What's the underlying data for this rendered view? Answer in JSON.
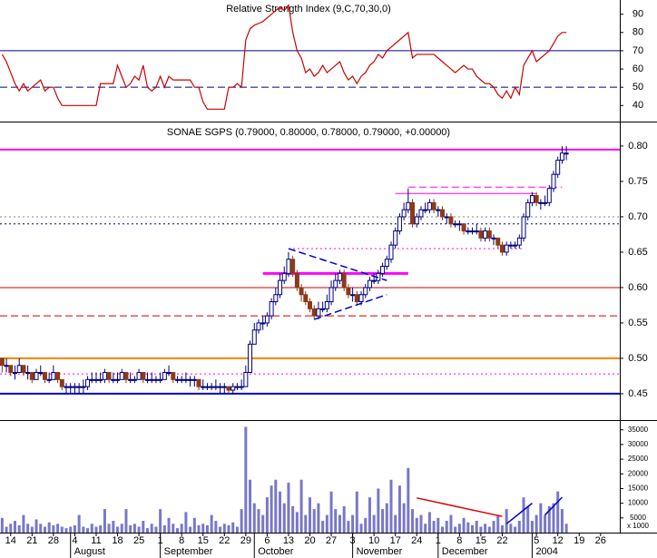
{
  "chart_data": [
    {
      "type": "line",
      "title": "Relative Strength Index (9,C,70,30,0)",
      "color": "#cc0000",
      "xlim": [
        -0.5,
        144.5
      ],
      "ylim": [
        31.7,
        97.8
      ],
      "yticks": [
        40,
        50,
        60,
        70,
        80,
        90
      ],
      "hlines": [
        {
          "value": 70,
          "color": "#000080",
          "style": "solid",
          "width": 1
        },
        {
          "value": 50,
          "color": "#000080",
          "style": "dashed",
          "width": 1
        }
      ],
      "values": [
        68,
        64,
        58,
        52,
        48,
        52,
        48,
        50,
        52,
        54,
        48,
        50,
        50,
        44,
        40,
        40,
        40,
        40,
        40,
        40,
        40,
        40,
        40,
        52,
        52,
        52,
        52,
        62,
        56,
        50,
        52,
        56,
        54,
        62,
        50,
        48,
        50,
        56,
        50,
        56,
        54,
        54,
        54,
        54,
        54,
        50,
        50,
        42,
        38,
        38,
        38,
        38,
        38,
        50,
        50,
        52,
        50,
        76,
        82,
        84,
        85,
        86,
        88,
        90,
        92,
        94,
        92,
        95,
        80,
        70,
        66,
        58,
        60,
        56,
        58,
        62,
        58,
        60,
        62,
        64,
        58,
        54,
        56,
        52,
        56,
        58,
        62,
        64,
        68,
        66,
        70,
        72,
        74,
        76,
        78,
        80,
        66,
        68,
        68,
        68,
        68,
        68,
        66,
        64,
        62,
        60,
        58,
        60,
        62,
        60,
        60,
        56,
        54,
        52,
        52,
        50,
        46,
        44,
        48,
        44,
        50,
        46,
        62,
        66,
        70,
        64,
        66,
        68,
        70,
        74,
        78,
        80,
        80
      ]
    },
    {
      "type": "candlestick",
      "title": "SONAE SGPS (0.79000, 0.80000, 0.78000, 0.79000, +0.00000)",
      "up_color": "#000080",
      "down_color": "#8b3a1a",
      "xlim": [
        -0.5,
        144.5
      ],
      "ylim": [
        0.414,
        0.832
      ],
      "yticks": [
        0.45,
        {
          "value": 0.5,
          "label": "0.50"
        },
        0.55,
        {
          "value": 0.6,
          "label": "0.60"
        },
        0.65,
        {
          "value": 0.7,
          "label": "0.70"
        },
        0.75,
        {
          "value": 0.8,
          "label": "0.80"
        }
      ],
      "hlines": [
        {
          "value": 0.795,
          "color": "#ff00ff",
          "style": "solid",
          "width": 2
        },
        {
          "value": 0.7,
          "color": "#808080",
          "style": "dotted",
          "width": 1
        },
        {
          "value": 0.69,
          "color": "#000080",
          "style": "dotted",
          "width": 1
        },
        {
          "value": 0.6,
          "color": "#cc0000",
          "style": "solid",
          "width": 1
        },
        {
          "value": 0.56,
          "color": "#cc0000",
          "style": "dashed",
          "width": 1
        },
        {
          "value": 0.5,
          "color": "#ff8000",
          "style": "solid",
          "width": 2
        },
        {
          "value": 0.478,
          "color": "#ff00ff",
          "style": "dotted",
          "width": 1
        },
        {
          "value": 0.45,
          "color": "#0000cc",
          "style": "solid",
          "width": 2
        }
      ],
      "segments": [
        {
          "from": 61,
          "to": 95,
          "value": 0.62,
          "color": "#ff00ff",
          "style": "solid",
          "width": 3
        },
        {
          "from": 67,
          "to": 122,
          "value": 0.655,
          "color": "#ff00ff",
          "style": "dotted",
          "width": 1
        },
        {
          "from": 92,
          "to": 125,
          "value": 0.733,
          "color": "#ff00ff",
          "style": "solid",
          "width": 1
        },
        {
          "from": 95,
          "to": 131,
          "value": 0.742,
          "color": "#ff00ff",
          "style": "dashed",
          "width": 1
        }
      ],
      "trendlines": [
        {
          "x": [
            67,
            90
          ],
          "y": [
            0.655,
            0.61
          ],
          "color": "#0000cc",
          "style": "dashed"
        },
        {
          "x": [
            73,
            90
          ],
          "y": [
            0.555,
            0.59
          ],
          "color": "#0000cc",
          "style": "dashed"
        }
      ],
      "open": [
        0.5,
        0.49,
        0.49,
        0.48,
        0.48,
        0.49,
        0.48,
        0.48,
        0.47,
        0.48,
        0.48,
        0.47,
        0.47,
        0.48,
        0.47,
        0.46,
        0.46,
        0.46,
        0.46,
        0.46,
        0.46,
        0.47,
        0.47,
        0.47,
        0.47,
        0.48,
        0.47,
        0.47,
        0.47,
        0.48,
        0.47,
        0.47,
        0.47,
        0.48,
        0.47,
        0.47,
        0.47,
        0.47,
        0.47,
        0.48,
        0.48,
        0.47,
        0.47,
        0.47,
        0.47,
        0.47,
        0.47,
        0.46,
        0.46,
        0.46,
        0.46,
        0.46,
        0.46,
        0.46,
        0.455,
        0.46,
        0.46,
        0.46,
        0.48,
        0.52,
        0.54,
        0.55,
        0.55,
        0.56,
        0.58,
        0.59,
        0.61,
        0.62,
        0.64,
        0.62,
        0.6,
        0.59,
        0.58,
        0.57,
        0.56,
        0.57,
        0.57,
        0.58,
        0.6,
        0.61,
        0.62,
        0.6,
        0.59,
        0.59,
        0.58,
        0.59,
        0.6,
        0.61,
        0.61,
        0.62,
        0.63,
        0.64,
        0.66,
        0.68,
        0.7,
        0.71,
        0.72,
        0.69,
        0.7,
        0.71,
        0.71,
        0.72,
        0.71,
        0.71,
        0.7,
        0.7,
        0.69,
        0.69,
        0.69,
        0.68,
        0.68,
        0.68,
        0.68,
        0.67,
        0.68,
        0.67,
        0.67,
        0.66,
        0.65,
        0.66,
        0.66,
        0.66,
        0.67,
        0.7,
        0.72,
        0.73,
        0.72,
        0.72,
        0.72,
        0.74,
        0.76,
        0.78,
        0.79
      ],
      "high": [
        0.5,
        0.5,
        0.49,
        0.49,
        0.5,
        0.49,
        0.49,
        0.48,
        0.485,
        0.49,
        0.48,
        0.48,
        0.49,
        0.48,
        0.47,
        0.465,
        0.465,
        0.465,
        0.465,
        0.47,
        0.475,
        0.48,
        0.48,
        0.48,
        0.485,
        0.48,
        0.48,
        0.48,
        0.485,
        0.48,
        0.48,
        0.475,
        0.485,
        0.48,
        0.48,
        0.48,
        0.475,
        0.48,
        0.485,
        0.49,
        0.48,
        0.475,
        0.475,
        0.48,
        0.475,
        0.475,
        0.47,
        0.47,
        0.465,
        0.465,
        0.47,
        0.465,
        0.465,
        0.46,
        0.465,
        0.465,
        0.47,
        0.49,
        0.525,
        0.55,
        0.555,
        0.56,
        0.565,
        0.585,
        0.6,
        0.62,
        0.63,
        0.65,
        0.645,
        0.625,
        0.605,
        0.595,
        0.585,
        0.575,
        0.58,
        0.58,
        0.59,
        0.61,
        0.62,
        0.625,
        0.625,
        0.605,
        0.6,
        0.595,
        0.595,
        0.605,
        0.615,
        0.62,
        0.625,
        0.635,
        0.645,
        0.665,
        0.685,
        0.705,
        0.72,
        0.74,
        0.725,
        0.705,
        0.715,
        0.72,
        0.725,
        0.725,
        0.715,
        0.715,
        0.705,
        0.705,
        0.695,
        0.695,
        0.69,
        0.685,
        0.685,
        0.69,
        0.685,
        0.685,
        0.685,
        0.675,
        0.67,
        0.665,
        0.665,
        0.665,
        0.665,
        0.675,
        0.705,
        0.725,
        0.735,
        0.735,
        0.725,
        0.73,
        0.745,
        0.765,
        0.785,
        0.8,
        0.8
      ],
      "low": [
        0.48,
        0.48,
        0.475,
        0.47,
        0.48,
        0.475,
        0.47,
        0.465,
        0.47,
        0.475,
        0.465,
        0.465,
        0.47,
        0.465,
        0.455,
        0.45,
        0.45,
        0.45,
        0.45,
        0.45,
        0.455,
        0.465,
        0.465,
        0.465,
        0.465,
        0.465,
        0.465,
        0.465,
        0.47,
        0.465,
        0.465,
        0.465,
        0.47,
        0.465,
        0.465,
        0.465,
        0.465,
        0.465,
        0.47,
        0.475,
        0.465,
        0.465,
        0.465,
        0.465,
        0.46,
        0.46,
        0.455,
        0.455,
        0.455,
        0.455,
        0.455,
        0.45,
        0.45,
        0.45,
        0.45,
        0.455,
        0.455,
        0.46,
        0.48,
        0.52,
        0.535,
        0.54,
        0.545,
        0.555,
        0.575,
        0.585,
        0.605,
        0.615,
        0.615,
        0.595,
        0.58,
        0.575,
        0.565,
        0.555,
        0.555,
        0.565,
        0.565,
        0.575,
        0.595,
        0.605,
        0.595,
        0.585,
        0.58,
        0.575,
        0.575,
        0.585,
        0.595,
        0.605,
        0.605,
        0.615,
        0.625,
        0.635,
        0.655,
        0.675,
        0.695,
        0.705,
        0.685,
        0.685,
        0.695,
        0.705,
        0.705,
        0.705,
        0.7,
        0.695,
        0.69,
        0.685,
        0.685,
        0.68,
        0.675,
        0.675,
        0.675,
        0.675,
        0.665,
        0.665,
        0.665,
        0.66,
        0.655,
        0.645,
        0.645,
        0.655,
        0.655,
        0.655,
        0.665,
        0.695,
        0.715,
        0.715,
        0.71,
        0.715,
        0.715,
        0.735,
        0.755,
        0.775,
        0.78
      ],
      "close": [
        0.49,
        0.49,
        0.48,
        0.48,
        0.49,
        0.48,
        0.48,
        0.47,
        0.48,
        0.48,
        0.47,
        0.47,
        0.48,
        0.47,
        0.46,
        0.46,
        0.46,
        0.46,
        0.46,
        0.46,
        0.47,
        0.47,
        0.47,
        0.47,
        0.48,
        0.47,
        0.47,
        0.47,
        0.48,
        0.47,
        0.47,
        0.47,
        0.48,
        0.47,
        0.47,
        0.47,
        0.47,
        0.47,
        0.48,
        0.48,
        0.47,
        0.47,
        0.47,
        0.47,
        0.47,
        0.47,
        0.46,
        0.46,
        0.46,
        0.46,
        0.46,
        0.46,
        0.46,
        0.455,
        0.46,
        0.46,
        0.46,
        0.48,
        0.52,
        0.54,
        0.55,
        0.55,
        0.56,
        0.58,
        0.59,
        0.61,
        0.62,
        0.64,
        0.62,
        0.6,
        0.59,
        0.58,
        0.57,
        0.56,
        0.57,
        0.57,
        0.58,
        0.6,
        0.61,
        0.62,
        0.6,
        0.59,
        0.59,
        0.58,
        0.59,
        0.6,
        0.61,
        0.61,
        0.62,
        0.63,
        0.64,
        0.66,
        0.68,
        0.7,
        0.71,
        0.72,
        0.69,
        0.7,
        0.71,
        0.71,
        0.72,
        0.71,
        0.71,
        0.7,
        0.7,
        0.69,
        0.69,
        0.69,
        0.68,
        0.68,
        0.68,
        0.68,
        0.67,
        0.68,
        0.67,
        0.67,
        0.66,
        0.65,
        0.66,
        0.66,
        0.66,
        0.67,
        0.7,
        0.72,
        0.73,
        0.72,
        0.72,
        0.72,
        0.74,
        0.76,
        0.78,
        0.79,
        0.79
      ]
    },
    {
      "type": "bar",
      "axis_label": "x 1000",
      "color": "#7878c8",
      "xlim": [
        -0.5,
        144.5
      ],
      "ylim": [
        0,
        38000
      ],
      "yticks": [
        5000,
        10000,
        15000,
        20000,
        25000,
        30000,
        35000
      ],
      "trendlines": [
        {
          "x": [
            97,
            117
          ],
          "y": [
            11800,
            5500
          ],
          "color": "#dd0000",
          "style": "solid"
        },
        {
          "x": [
            118,
            124
          ],
          "y": [
            3000,
            10000
          ],
          "color": "#0000cc",
          "style": "solid"
        },
        {
          "x": [
            127,
            131
          ],
          "y": [
            6000,
            12000
          ],
          "color": "#0000cc",
          "style": "solid"
        }
      ],
      "values": [
        5000,
        2000,
        3000,
        4000,
        2500,
        6000,
        3000,
        2000,
        4500,
        3000,
        2000,
        3500,
        2500,
        3000,
        2000,
        1500,
        2000,
        2500,
        6000,
        2000,
        1500,
        3000,
        2000,
        2500,
        8000,
        3000,
        4000,
        2000,
        3000,
        8000,
        2500,
        3000,
        2000,
        4000,
        1500,
        3000,
        2000,
        8000,
        2500,
        5000,
        3000,
        1500,
        3000,
        7000,
        2000,
        5000,
        2500,
        3000,
        2500,
        6000,
        4000,
        2000,
        3000,
        2500,
        3500,
        2000,
        8000,
        36000,
        18000,
        10000,
        8000,
        6000,
        12000,
        16000,
        18000,
        14000,
        10000,
        17000,
        9000,
        7000,
        18000,
        6000,
        12000,
        8000,
        10000,
        4000,
        6000,
        14000,
        8000,
        6000,
        9000,
        4000,
        6000,
        14000,
        3000,
        5000,
        12000,
        6000,
        15000,
        8000,
        10000,
        18000,
        6000,
        16000,
        10000,
        22000,
        8000,
        5000,
        6000,
        3000,
        7000,
        4000,
        5000,
        2000,
        4000,
        6000,
        2000,
        3000,
        5000,
        3500,
        2500,
        4000,
        2000,
        3000,
        2000,
        4000,
        6000,
        2500,
        8000,
        3000,
        2000,
        4000,
        12000,
        9000,
        4000,
        6000,
        10000,
        6000,
        9000,
        10000,
        14000,
        8000,
        3000
      ],
      "xticks": [
        {
          "value": 2,
          "label": "14"
        },
        {
          "value": 7,
          "label": "21"
        },
        {
          "value": 12,
          "label": "28"
        },
        {
          "value": 17,
          "label": "4"
        },
        {
          "value": 22,
          "label": "11"
        },
        {
          "value": 27,
          "label": "18"
        },
        {
          "value": 32,
          "label": "25"
        },
        {
          "value": 37,
          "label": "1"
        },
        {
          "value": 42,
          "label": "8"
        },
        {
          "value": 47,
          "label": "15"
        },
        {
          "value": 52,
          "label": "22"
        },
        {
          "value": 57,
          "label": "29"
        },
        {
          "value": 62,
          "label": "6"
        },
        {
          "value": 67,
          "label": "13"
        },
        {
          "value": 72,
          "label": "20"
        },
        {
          "value": 77,
          "label": "27"
        },
        {
          "value": 82,
          "label": "3"
        },
        {
          "value": 87,
          "label": "10"
        },
        {
          "value": 92,
          "label": "17"
        },
        {
          "value": 97,
          "label": "24"
        },
        {
          "value": 102,
          "label": "1"
        },
        {
          "value": 107,
          "label": "8"
        },
        {
          "value": 112,
          "label": "15"
        },
        {
          "value": 117,
          "label": "22"
        },
        {
          "value": 125,
          "label": "5"
        },
        {
          "value": 130,
          "label": "12"
        },
        {
          "value": 135,
          "label": "19"
        },
        {
          "value": 140,
          "label": "26"
        }
      ],
      "month_labels": [
        {
          "value": 16,
          "label": "August"
        },
        {
          "value": 37,
          "label": "September"
        },
        {
          "value": 59,
          "label": "October"
        },
        {
          "value": 82,
          "label": "November"
        },
        {
          "value": 102,
          "label": "December"
        },
        {
          "value": 124,
          "label": "2004"
        }
      ]
    }
  ]
}
